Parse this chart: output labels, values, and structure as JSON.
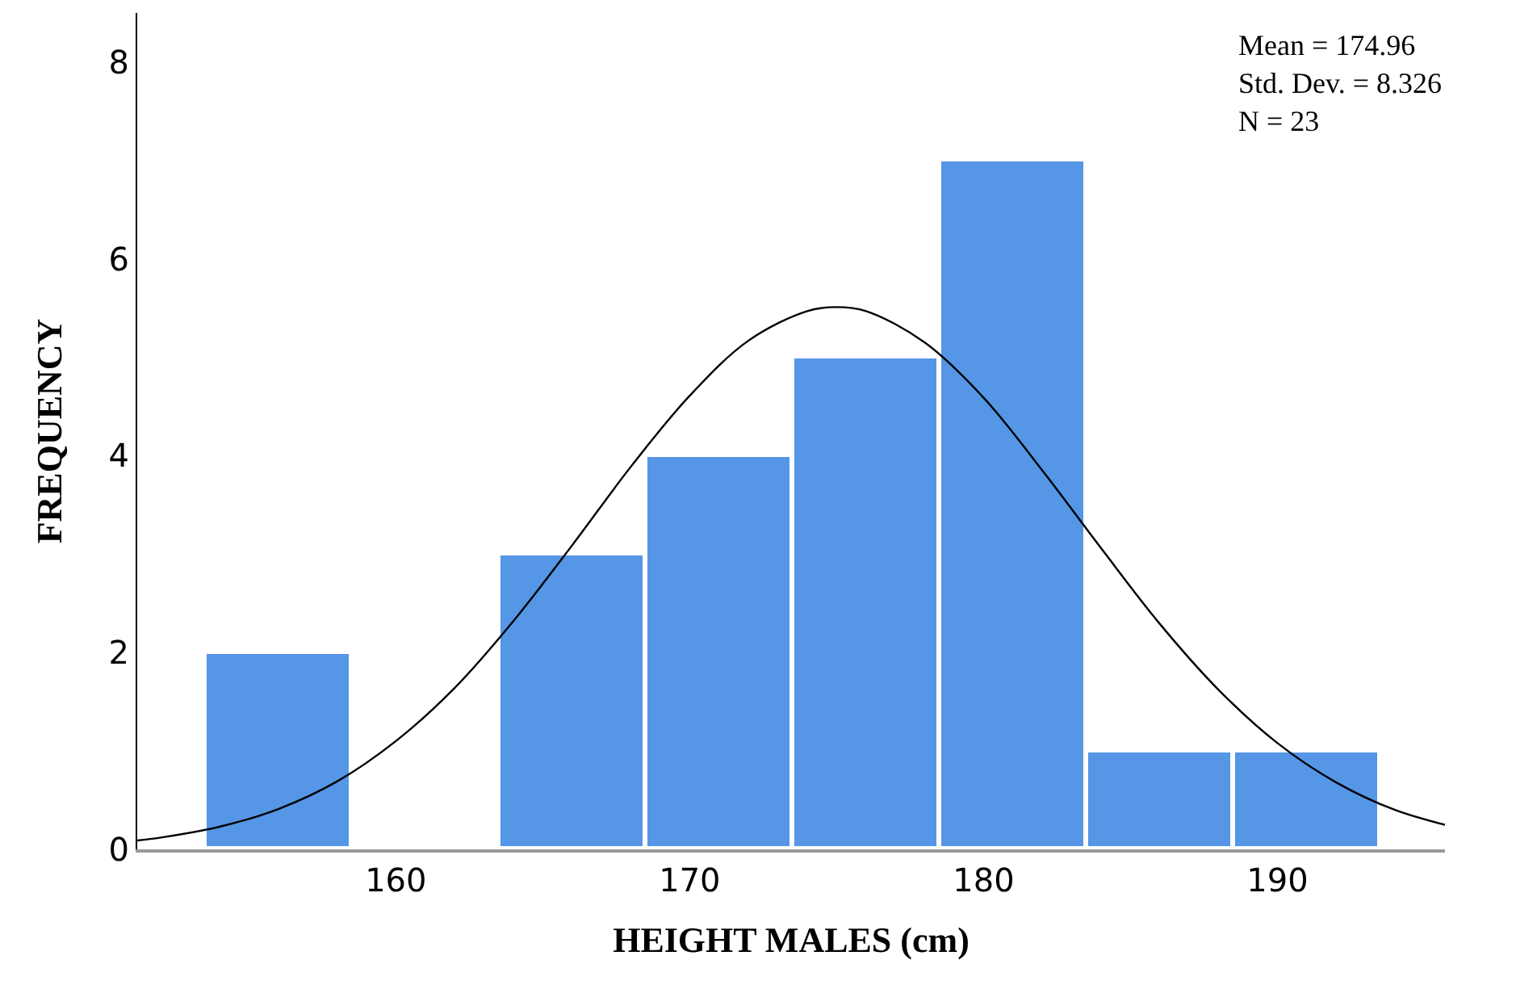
{
  "chart_data": {
    "type": "histogram",
    "xlabel": "HEIGHT MALES (cm)",
    "ylabel": "FREQUENCY",
    "bins": [
      153.5,
      158.5,
      163.5,
      168.5,
      173.5,
      178.5,
      183.5,
      188.5,
      193.5
    ],
    "values": [
      2,
      0,
      3,
      4,
      5,
      7,
      1,
      1
    ],
    "color": "#5596e6",
    "series": [
      {
        "type": "line",
        "color": "#000000",
        "x": [
          151.2,
          152,
          154,
          156,
          158,
          160,
          162,
          164,
          166,
          168,
          170,
          172,
          174,
          175,
          176,
          178,
          180,
          182,
          184,
          186,
          188,
          190,
          192,
          194,
          195.7
        ],
        "values": [
          0.09,
          0.12,
          0.23,
          0.41,
          0.69,
          1.1,
          1.64,
          2.32,
          3.09,
          3.89,
          4.61,
          5.17,
          5.47,
          5.51,
          5.47,
          5.15,
          4.59,
          3.85,
          3.06,
          2.29,
          1.62,
          1.08,
          0.68,
          0.4,
          0.25
        ]
      }
    ],
    "xlim": [
      151.2,
      195.7
    ],
    "ylim": [
      0,
      8.5
    ],
    "xticks": [
      160,
      170,
      180,
      190
    ],
    "yticks": [
      0,
      2,
      4,
      6,
      8
    ],
    "annotations": [
      "Mean = 174.96\nStd. Dev. = 8.326\nN = 23"
    ]
  }
}
